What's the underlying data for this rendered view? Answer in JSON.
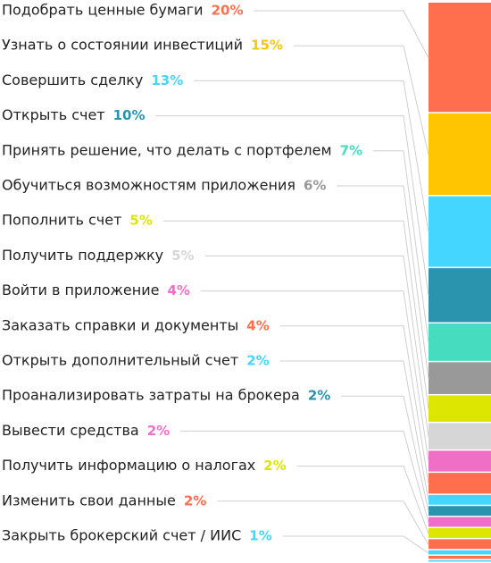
{
  "chart_data": {
    "type": "bar",
    "title": "",
    "categories": [
      "Подобрать ценные бумаги",
      "Узнать о состоянии инвестиций",
      "Совершить сделку",
      "Открыть счет",
      "Принять решение, что делать с портфелем",
      "Обучиться возможностям приложения",
      "Пополнить счет",
      "Получить поддержку",
      "Войти в приложение",
      "Заказать справки и документы",
      "Открыть дополнительный счет",
      "Проанализировать затраты на брокера",
      "Вывести средства",
      "Получить информацию о налогах",
      "Изменить свои данные",
      "Закрыть брокерский счет / ИИС"
    ],
    "values": [
      20,
      15,
      13,
      10,
      7,
      6,
      5,
      5,
      4,
      4,
      2,
      2,
      2,
      2,
      2,
      1
    ],
    "value_labels": [
      "20%",
      "15%",
      "13%",
      "10%",
      "7%",
      "6%",
      "5%",
      "5%",
      "4%",
      "4%",
      "2%",
      "2%",
      "2%",
      "2%",
      "2%",
      "1%"
    ],
    "colors": [
      "#FF6F4E",
      "#FFC600",
      "#45D6FF",
      "#2A93AE",
      "#45DCC0",
      "#999999",
      "#DDE600",
      "#D6D6D6",
      "#F06FC6",
      "#FF6F4E",
      "#45D6FF",
      "#2A93AE",
      "#F06FC6",
      "#DDE600",
      "#FF6F4E",
      "#45D6FF"
    ],
    "extra_segments": [
      {
        "value": 0.8,
        "color": "#FF6F4E"
      },
      {
        "value": 0.5,
        "color": "#45D6FF"
      }
    ],
    "layout": "single stacked vertical bar at right, labels on left connected by leader lines"
  }
}
